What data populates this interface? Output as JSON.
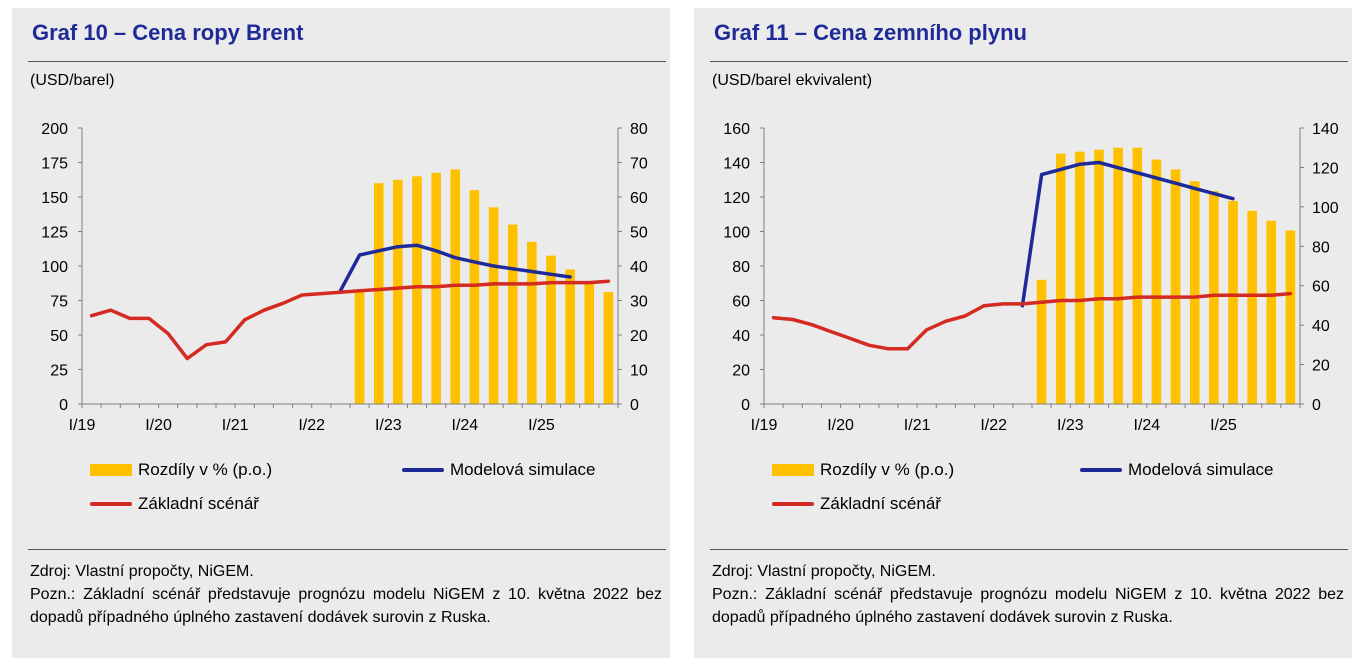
{
  "panels": [
    {
      "title": "Graf 10 – Cena ropy Brent",
      "unit": "(USD/barel)",
      "source": "Zdroj: Vlastní propočty, NiGEM.",
      "note": "Pozn.: Základní scénář představuje prognózu modelu NiGEM z 10. května 2022 bez dopadů případného úplného zastavení dodávek surovin z Ruska."
    },
    {
      "title": "Graf 11 – Cena zemního plynu",
      "unit": "(USD/barel ekvivalent)",
      "source": "Zdroj: Vlastní propočty, NiGEM.",
      "note": "Pozn.: Základní scénář představuje prognózu modelu NiGEM z 10. května 2022 bez dopadů případného úplného zastavení dodávek surovin z Ruska."
    }
  ],
  "chart_data": [
    {
      "type": "bar",
      "x": [
        "I/19",
        "II/19",
        "III/19",
        "IV/19",
        "I/20",
        "II/20",
        "III/20",
        "IV/20",
        "I/21",
        "II/21",
        "III/21",
        "IV/21",
        "I/22",
        "II/22",
        "III/22",
        "IV/22",
        "I/23",
        "II/23",
        "III/23",
        "IV/23",
        "I/24",
        "II/24",
        "III/24",
        "IV/24",
        "I/25",
        "II/25",
        "III/25",
        "IV/25"
      ],
      "x_tick_labels": [
        "I/19",
        "I/20",
        "I/21",
        "I/22",
        "I/23",
        "I/24",
        "I/25"
      ],
      "ylim_left": [
        0,
        200
      ],
      "yticks_left": [
        0,
        25,
        50,
        75,
        100,
        125,
        150,
        175,
        200
      ],
      "ylim_right": [
        0,
        80
      ],
      "yticks_right": [
        0,
        10,
        20,
        30,
        40,
        50,
        60,
        70,
        80
      ],
      "legend": "bottom",
      "grid": false,
      "series": [
        {
          "name": "Rozdíly v % (p.o.)",
          "type": "bar",
          "axis": "right",
          "color": "#ffc000",
          "values": [
            null,
            null,
            null,
            null,
            null,
            null,
            null,
            null,
            null,
            null,
            null,
            null,
            null,
            null,
            33,
            64,
            65,
            66,
            67,
            68,
            62,
            57,
            52,
            47,
            43,
            39,
            35,
            32.5
          ]
        },
        {
          "name": "Modelová simulace",
          "type": "line",
          "axis": "left",
          "color": "#1f2a99",
          "values": [
            null,
            null,
            null,
            null,
            null,
            null,
            null,
            null,
            null,
            null,
            null,
            null,
            null,
            82,
            108,
            111,
            114,
            115,
            111,
            106,
            103,
            100,
            98,
            96,
            94,
            92,
            null,
            null
          ]
        },
        {
          "name": "Základní scénář",
          "type": "line",
          "axis": "left",
          "color": "#d42a22",
          "values": [
            64,
            68,
            62,
            62,
            51,
            33,
            43,
            45,
            61,
            68,
            73,
            79,
            80,
            81,
            82,
            83,
            84,
            85,
            85,
            86,
            86,
            87,
            87,
            87,
            88,
            88,
            88,
            89
          ]
        }
      ]
    },
    {
      "type": "bar",
      "x": [
        "I/19",
        "II/19",
        "III/19",
        "IV/19",
        "I/20",
        "II/20",
        "III/20",
        "IV/20",
        "I/21",
        "II/21",
        "III/21",
        "IV/21",
        "I/22",
        "II/22",
        "III/22",
        "IV/22",
        "I/23",
        "II/23",
        "III/23",
        "IV/23",
        "I/24",
        "II/24",
        "III/24",
        "IV/24",
        "I/25",
        "II/25",
        "III/25",
        "IV/25"
      ],
      "x_tick_labels": [
        "I/19",
        "I/20",
        "I/21",
        "I/22",
        "I/23",
        "I/24",
        "I/25"
      ],
      "ylim_left": [
        0,
        160
      ],
      "yticks_left": [
        0,
        20,
        40,
        60,
        80,
        100,
        120,
        140,
        160
      ],
      "ylim_right": [
        0,
        140
      ],
      "yticks_right": [
        0,
        20,
        40,
        60,
        80,
        100,
        120,
        140
      ],
      "legend": "bottom",
      "grid": false,
      "series": [
        {
          "name": "Rozdíly v % (p.o.)",
          "type": "bar",
          "axis": "right",
          "color": "#ffc000",
          "values": [
            null,
            null,
            null,
            null,
            null,
            null,
            null,
            null,
            null,
            null,
            null,
            null,
            null,
            null,
            63,
            127,
            128,
            129,
            130,
            130,
            124,
            119,
            113,
            108,
            103,
            98,
            93,
            88
          ]
        },
        {
          "name": "Modelová simulace",
          "type": "line",
          "axis": "left",
          "color": "#1f2a99",
          "values": [
            null,
            null,
            null,
            null,
            null,
            null,
            null,
            null,
            null,
            null,
            null,
            null,
            null,
            57,
            133,
            136,
            139,
            140,
            137,
            134,
            131,
            128,
            125,
            122,
            119,
            null,
            null,
            null
          ]
        },
        {
          "name": "Základní scénář",
          "type": "line",
          "axis": "left",
          "color": "#d42a22",
          "values": [
            50,
            49,
            46,
            42,
            38,
            34,
            32,
            32,
            43,
            48,
            51,
            57,
            58,
            58,
            59,
            60,
            60,
            61,
            61,
            62,
            62,
            62,
            62,
            63,
            63,
            63,
            63,
            64
          ]
        }
      ]
    }
  ]
}
